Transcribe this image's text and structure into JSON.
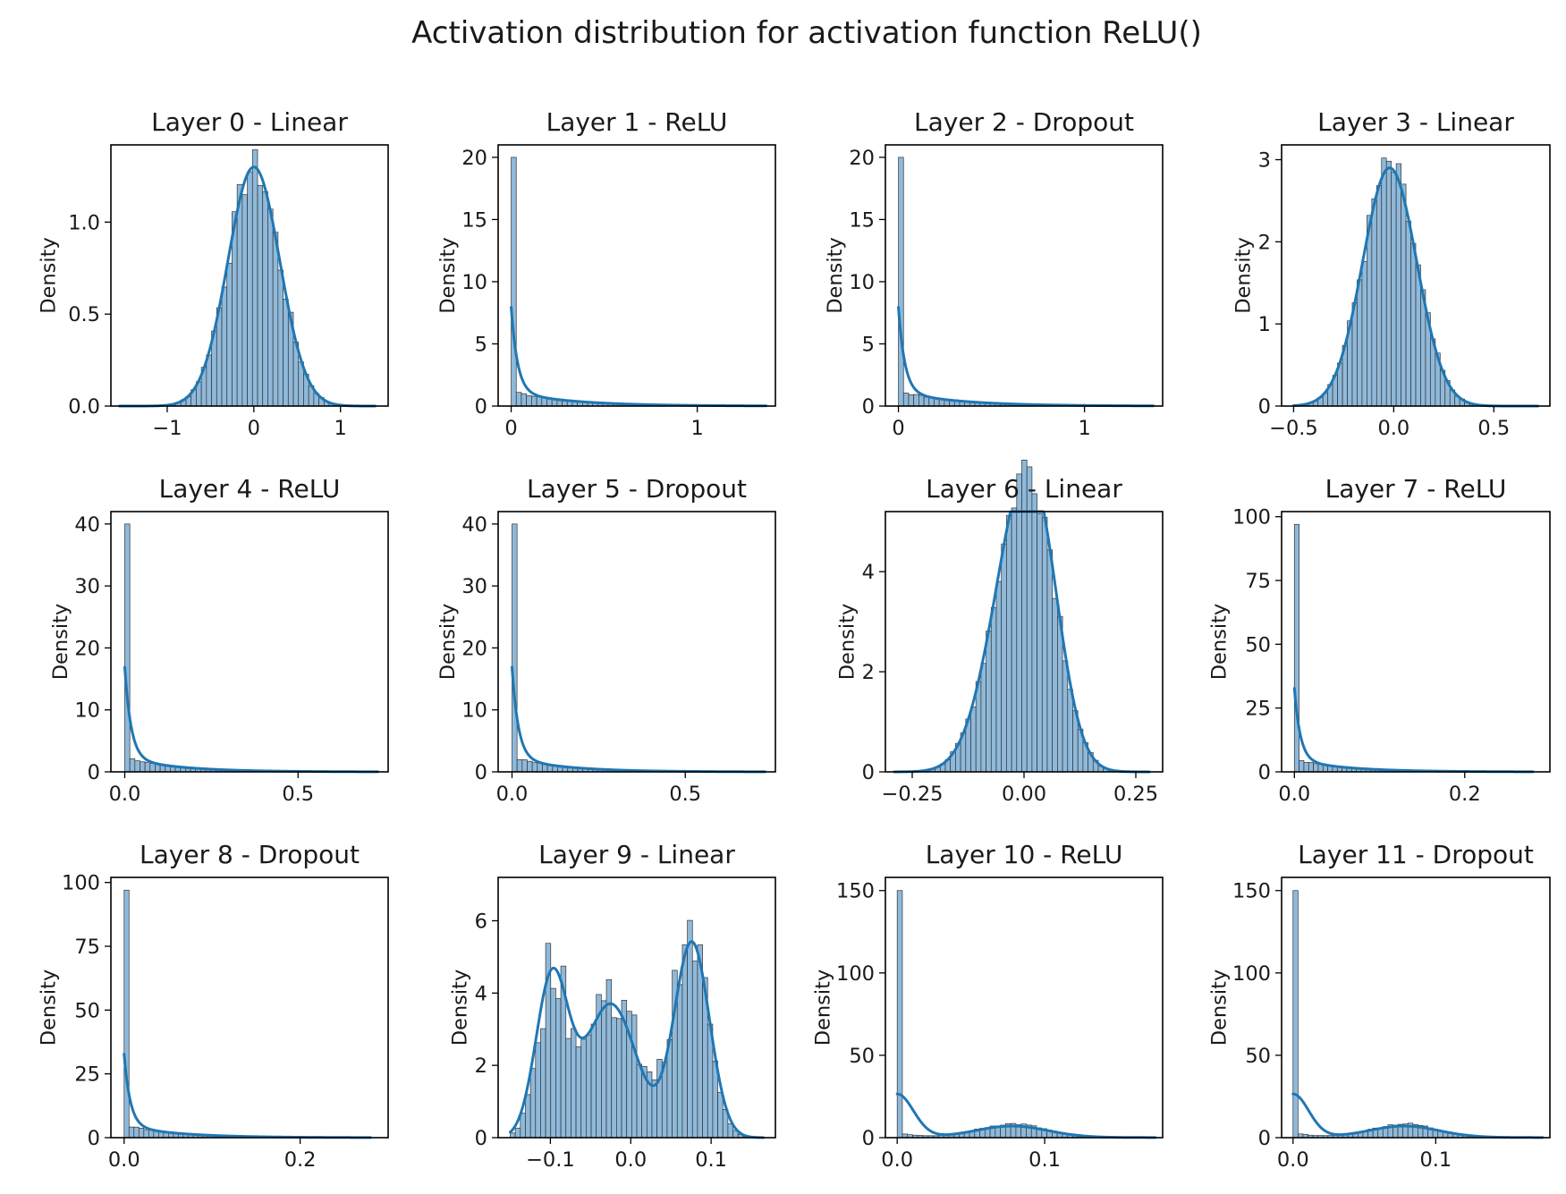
{
  "figure": {
    "title": "Activation distribution for activation function ReLU()"
  },
  "colors": {
    "bar": "#8fb9da",
    "kde": "#1f77b4",
    "edge": "#333333"
  },
  "chart_data": [
    {
      "type": "histogram+kde",
      "title": "Layer 0 - Linear",
      "ylabel": "Density",
      "xlim": [
        -1.65,
        1.55
      ],
      "ylim": [
        0,
        1.42
      ],
      "xticks": [
        -1,
        0,
        1
      ],
      "xticklabels": [
        "−1",
        "0",
        "1"
      ],
      "yticks": [
        0,
        0.5,
        1.0
      ],
      "yticklabels": [
        "0.0",
        "0.5",
        "1.0"
      ],
      "shape": "gauss",
      "params": {
        "mu": 0,
        "sigma": 0.3,
        "peak": 1.3,
        "lo": -1.55,
        "hi": 1.4,
        "bins": 50
      }
    },
    {
      "type": "histogram+kde",
      "title": "Layer 1 - ReLU",
      "ylabel": "Density",
      "xlim": [
        -0.07,
        1.42
      ],
      "ylim": [
        0,
        21
      ],
      "xticks": [
        0,
        1
      ],
      "xticklabels": [
        "0",
        "1"
      ],
      "yticks": [
        0,
        5,
        10,
        15,
        20
      ],
      "yticklabels": [
        "0",
        "5",
        "10",
        "15",
        "20"
      ],
      "shape": "relu",
      "params": {
        "spike": 20,
        "kde0": 8,
        "tail": 1.2,
        "decay": 0.32,
        "hi": 1.37,
        "bins": 50
      }
    },
    {
      "type": "histogram+kde",
      "title": "Layer 2 - Dropout",
      "ylabel": "Density",
      "xlim": [
        -0.07,
        1.42
      ],
      "ylim": [
        0,
        21
      ],
      "xticks": [
        0,
        1
      ],
      "xticklabels": [
        "0",
        "1"
      ],
      "yticks": [
        0,
        5,
        10,
        15,
        20
      ],
      "yticklabels": [
        "0",
        "5",
        "10",
        "15",
        "20"
      ],
      "shape": "relu",
      "params": {
        "spike": 20,
        "kde0": 8,
        "tail": 1.2,
        "decay": 0.32,
        "hi": 1.37,
        "bins": 50
      }
    },
    {
      "type": "histogram+kde",
      "title": "Layer 3 - Linear",
      "ylabel": "Density",
      "xlim": [
        -0.56,
        0.78
      ],
      "ylim": [
        0,
        3.18
      ],
      "xticks": [
        -0.5,
        0,
        0.5
      ],
      "xticklabels": [
        "−0.5",
        "0.0",
        "0.5"
      ],
      "yticks": [
        0,
        1,
        2,
        3
      ],
      "yticklabels": [
        "0",
        "1",
        "2",
        "3"
      ],
      "shape": "gauss",
      "params": {
        "mu": -0.02,
        "sigma": 0.135,
        "peak": 2.9,
        "lo": -0.5,
        "hi": 0.72,
        "bins": 50
      }
    },
    {
      "type": "histogram+kde",
      "title": "Layer 4 - ReLU",
      "ylabel": "Density",
      "xlim": [
        -0.04,
        0.76
      ],
      "ylim": [
        0,
        42
      ],
      "xticks": [
        0,
        0.5
      ],
      "xticklabels": [
        "0.0",
        "0.5"
      ],
      "yticks": [
        0,
        10,
        20,
        30,
        40
      ],
      "yticklabels": [
        "0",
        "10",
        "20",
        "30",
        "40"
      ],
      "shape": "relu",
      "params": {
        "spike": 40,
        "kde0": 17,
        "tail": 2.4,
        "decay": 0.15,
        "hi": 0.73,
        "bins": 50
      }
    },
    {
      "type": "histogram+kde",
      "title": "Layer 5 - Dropout",
      "ylabel": "Density",
      "xlim": [
        -0.04,
        0.76
      ],
      "ylim": [
        0,
        42
      ],
      "xticks": [
        0,
        0.5
      ],
      "xticklabels": [
        "0.0",
        "0.5"
      ],
      "yticks": [
        0,
        10,
        20,
        30,
        40
      ],
      "yticklabels": [
        "0",
        "10",
        "20",
        "30",
        "40"
      ],
      "shape": "relu",
      "params": {
        "spike": 40,
        "kde0": 17,
        "tail": 2.4,
        "decay": 0.15,
        "hi": 0.73,
        "bins": 50
      }
    },
    {
      "type": "histogram+kde",
      "title": "Layer 6 - Linear",
      "ylabel": "Density",
      "xlim": [
        -0.31,
        0.31
      ],
      "ylim": [
        0,
        5.2
      ],
      "xticks": [
        -0.25,
        0,
        0.25
      ],
      "xticklabels": [
        "−0.25",
        "0.00",
        "0.25"
      ],
      "yticks": [
        0,
        2,
        4
      ],
      "yticklabels": [
        "0",
        "2",
        "4"
      ],
      "shape": "bimodal",
      "params": {
        "c": [
          -0.015,
          0.035
        ],
        "s": [
          0.065,
          0.05
        ],
        "a": [
          4.3,
          2.4
        ],
        "lo": -0.29,
        "hi": 0.28,
        "bins": 50
      }
    },
    {
      "type": "histogram+kde",
      "title": "Layer 7 - ReLU",
      "ylabel": "Density",
      "xlim": [
        -0.015,
        0.3
      ],
      "ylim": [
        0,
        102
      ],
      "xticks": [
        0,
        0.2
      ],
      "xticklabels": [
        "0.0",
        "0.2"
      ],
      "yticks": [
        0,
        25,
        50,
        75,
        100
      ],
      "yticklabels": [
        "0",
        "25",
        "50",
        "75",
        "100"
      ],
      "shape": "relu",
      "params": {
        "spike": 97,
        "kde0": 33,
        "tail": 5,
        "decay": 0.06,
        "hi": 0.28,
        "bins": 50
      }
    },
    {
      "type": "histogram+kde",
      "title": "Layer 8 - Dropout",
      "ylabel": "Density",
      "xlim": [
        -0.015,
        0.3
      ],
      "ylim": [
        0,
        102
      ],
      "xticks": [
        0,
        0.2
      ],
      "xticklabels": [
        "0.0",
        "0.2"
      ],
      "yticks": [
        0,
        25,
        50,
        75,
        100
      ],
      "yticklabels": [
        "0",
        "25",
        "50",
        "75",
        "100"
      ],
      "shape": "relu",
      "params": {
        "spike": 97,
        "kde0": 33,
        "tail": 5,
        "decay": 0.06,
        "hi": 0.28,
        "bins": 50
      }
    },
    {
      "type": "histogram+kde",
      "title": "Layer 9 - Linear",
      "ylabel": "Density",
      "xlim": [
        -0.165,
        0.18
      ],
      "ylim": [
        0,
        7.2
      ],
      "xticks": [
        -0.1,
        0,
        0.1
      ],
      "xticklabels": [
        "−0.1",
        "0.0",
        "0.1"
      ],
      "yticks": [
        0,
        2,
        4,
        6
      ],
      "yticklabels": [
        "0",
        "2",
        "4",
        "6"
      ],
      "shape": "trimodal",
      "params": {
        "c": [
          -0.098,
          -0.025,
          0.075
        ],
        "s": [
          0.018,
          0.035,
          0.022
        ],
        "a": [
          4.4,
          3.9,
          5.3
        ],
        "lo": -0.15,
        "hi": 0.165,
        "bins": 50
      }
    },
    {
      "type": "histogram+kde",
      "title": "Layer 10 - ReLU",
      "ylabel": "Density",
      "xlim": [
        -0.008,
        0.18
      ],
      "ylim": [
        0,
        158
      ],
      "xticks": [
        0,
        0.1
      ],
      "xticklabels": [
        "0.0",
        "0.1"
      ],
      "yticks": [
        0,
        50,
        100,
        150
      ],
      "yticklabels": [
        "0",
        "50",
        "100",
        "150"
      ],
      "shape": "relu2",
      "params": {
        "spike": 150,
        "kde0": 27,
        "hump": 8,
        "hc": 0.078,
        "hs": 0.022,
        "hi": 0.175,
        "bins": 50
      }
    },
    {
      "type": "histogram+kde",
      "title": "Layer 11 - Dropout",
      "ylabel": "Density",
      "xlim": [
        -0.008,
        0.18
      ],
      "ylim": [
        0,
        158
      ],
      "xticks": [
        0,
        0.1
      ],
      "xticklabels": [
        "0.0",
        "0.1"
      ],
      "yticks": [
        0,
        50,
        100,
        150
      ],
      "yticklabels": [
        "0",
        "50",
        "100",
        "150"
      ],
      "shape": "relu2",
      "params": {
        "spike": 150,
        "kde0": 27,
        "hump": 8,
        "hc": 0.078,
        "hs": 0.022,
        "hi": 0.175,
        "bins": 50
      }
    }
  ]
}
